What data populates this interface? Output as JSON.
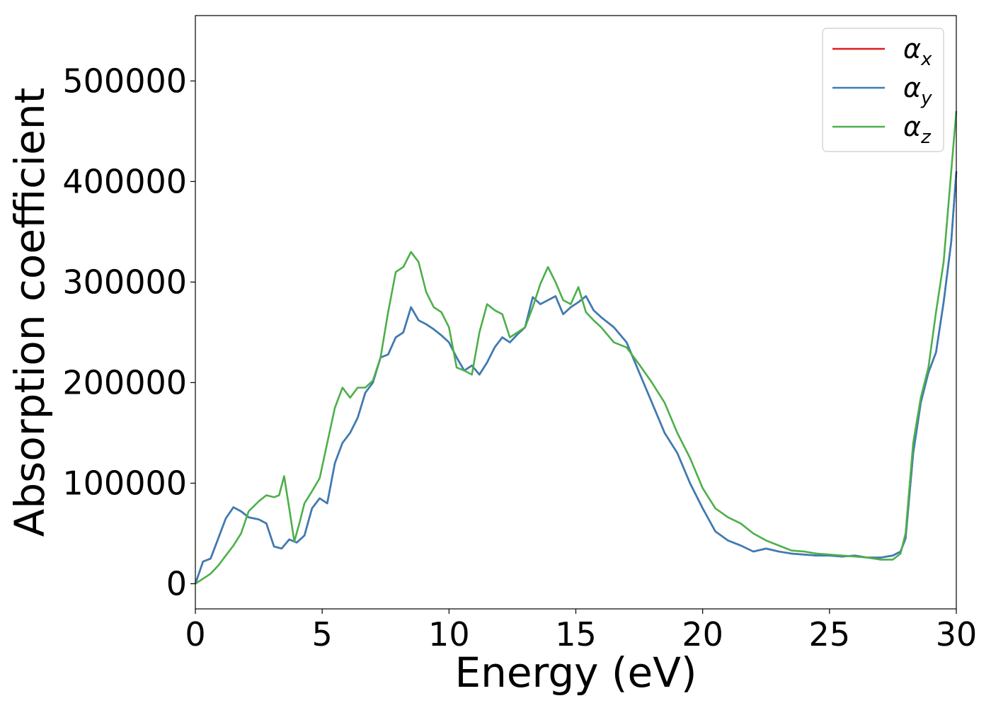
{
  "chart_data": {
    "type": "line",
    "title": "",
    "xlabel": "Energy (eV)",
    "ylabel": "Absorption coefficient",
    "xlim": [
      0,
      30
    ],
    "ylim": [
      -25000,
      565000
    ],
    "xticks": [
      0,
      5,
      10,
      15,
      20,
      25,
      30
    ],
    "xtick_labels": [
      "0",
      "5",
      "10",
      "15",
      "20",
      "25",
      "30"
    ],
    "yticks": [
      0,
      100000,
      200000,
      300000,
      400000,
      500000
    ],
    "ytick_labels": [
      "0",
      "100000",
      "200000",
      "300000",
      "400000",
      "500000"
    ],
    "grid": false,
    "legend_position": "top-right",
    "legend": [
      {
        "symbol": "α",
        "sub": "x",
        "color": "#e41a1c"
      },
      {
        "symbol": "α",
        "sub": "y",
        "color": "#377eb8"
      },
      {
        "symbol": "α",
        "sub": "z",
        "color": "#4daf4a"
      }
    ],
    "series": [
      {
        "color": "#e41a1c",
        "x": [
          0,
          0.3,
          0.6,
          0.9,
          1.2,
          1.5,
          1.8,
          2.1,
          2.5,
          2.8,
          3.1,
          3.4,
          3.7,
          4.0,
          4.3,
          4.6,
          4.9,
          5.2,
          5.5,
          5.8,
          6.1,
          6.4,
          6.7,
          7.0,
          7.3,
          7.6,
          7.9,
          8.2,
          8.5,
          8.8,
          9.1,
          9.4,
          9.7,
          10.0,
          10.3,
          10.6,
          10.9,
          11.2,
          11.5,
          11.8,
          12.1,
          12.4,
          12.7,
          13.0,
          13.3,
          13.6,
          13.9,
          14.2,
          14.5,
          14.8,
          15.1,
          15.4,
          15.7,
          16.0,
          16.5,
          17.0,
          17.5,
          18.0,
          18.5,
          19.0,
          19.5,
          20.0,
          20.5,
          21.0,
          21.5,
          22.0,
          22.5,
          23.0,
          23.5,
          24.0,
          24.5,
          25.0,
          25.5,
          26.0,
          26.5,
          27.0,
          27.5,
          27.8,
          28.0,
          28.3,
          28.6,
          28.9,
          29.2,
          29.5,
          29.8,
          30.0
        ],
        "y": [
          0,
          22000,
          25000,
          45000,
          65000,
          76000,
          72000,
          66000,
          64000,
          60000,
          37000,
          35000,
          44000,
          41000,
          48000,
          75000,
          85000,
          80000,
          120000,
          140000,
          150000,
          165000,
          190000,
          200000,
          225000,
          228000,
          245000,
          250000,
          275000,
          262000,
          258000,
          253000,
          247000,
          240000,
          225000,
          212000,
          217000,
          208000,
          220000,
          235000,
          245000,
          240000,
          248000,
          255000,
          285000,
          278000,
          282000,
          286000,
          268000,
          275000,
          280000,
          286000,
          272000,
          265000,
          255000,
          240000,
          210000,
          180000,
          150000,
          130000,
          100000,
          75000,
          52000,
          43000,
          38000,
          32000,
          35000,
          32000,
          30000,
          29000,
          28000,
          28000,
          27000,
          28000,
          26000,
          26000,
          28000,
          32000,
          45000,
          130000,
          180000,
          210000,
          230000,
          280000,
          340000,
          410000
        ]
      },
      {
        "color": "#377eb8",
        "x": [
          0,
          0.3,
          0.6,
          0.9,
          1.2,
          1.5,
          1.8,
          2.1,
          2.5,
          2.8,
          3.1,
          3.4,
          3.7,
          4.0,
          4.3,
          4.6,
          4.9,
          5.2,
          5.5,
          5.8,
          6.1,
          6.4,
          6.7,
          7.0,
          7.3,
          7.6,
          7.9,
          8.2,
          8.5,
          8.8,
          9.1,
          9.4,
          9.7,
          10.0,
          10.3,
          10.6,
          10.9,
          11.2,
          11.5,
          11.8,
          12.1,
          12.4,
          12.7,
          13.0,
          13.3,
          13.6,
          13.9,
          14.2,
          14.5,
          14.8,
          15.1,
          15.4,
          15.7,
          16.0,
          16.5,
          17.0,
          17.5,
          18.0,
          18.5,
          19.0,
          19.5,
          20.0,
          20.5,
          21.0,
          21.5,
          22.0,
          22.5,
          23.0,
          23.5,
          24.0,
          24.5,
          25.0,
          25.5,
          26.0,
          26.5,
          27.0,
          27.5,
          27.8,
          28.0,
          28.3,
          28.6,
          28.9,
          29.2,
          29.5,
          29.8,
          30.0
        ],
        "y": [
          0,
          22000,
          25000,
          45000,
          65000,
          76000,
          72000,
          66000,
          64000,
          60000,
          37000,
          35000,
          44000,
          41000,
          48000,
          75000,
          85000,
          80000,
          120000,
          140000,
          150000,
          165000,
          190000,
          200000,
          225000,
          228000,
          245000,
          250000,
          275000,
          262000,
          258000,
          253000,
          247000,
          240000,
          225000,
          212000,
          217000,
          208000,
          220000,
          235000,
          245000,
          240000,
          248000,
          255000,
          285000,
          278000,
          282000,
          286000,
          268000,
          275000,
          280000,
          286000,
          272000,
          265000,
          255000,
          240000,
          210000,
          180000,
          150000,
          130000,
          100000,
          75000,
          52000,
          43000,
          38000,
          32000,
          35000,
          32000,
          30000,
          29000,
          28000,
          28000,
          27000,
          28000,
          26000,
          26000,
          28000,
          32000,
          45000,
          130000,
          180000,
          210000,
          230000,
          280000,
          340000,
          410000
        ]
      },
      {
        "color": "#4daf4a",
        "x": [
          0,
          0.3,
          0.6,
          0.9,
          1.2,
          1.5,
          1.8,
          2.1,
          2.5,
          2.8,
          3.1,
          3.3,
          3.5,
          3.7,
          3.9,
          4.1,
          4.3,
          4.6,
          4.9,
          5.2,
          5.5,
          5.8,
          6.1,
          6.4,
          6.7,
          7.0,
          7.3,
          7.6,
          7.9,
          8.2,
          8.5,
          8.8,
          9.1,
          9.4,
          9.7,
          10.0,
          10.3,
          10.6,
          10.9,
          11.2,
          11.5,
          11.8,
          12.1,
          12.4,
          12.7,
          13.0,
          13.3,
          13.6,
          13.9,
          14.2,
          14.5,
          14.8,
          15.1,
          15.4,
          15.7,
          16.0,
          16.5,
          17.0,
          17.5,
          18.0,
          18.5,
          19.0,
          19.5,
          20.0,
          20.5,
          21.0,
          21.5,
          22.0,
          22.5,
          23.0,
          23.5,
          24.0,
          24.5,
          25.0,
          25.5,
          26.0,
          26.5,
          27.0,
          27.5,
          27.8,
          28.0,
          28.3,
          28.6,
          28.9,
          29.2,
          29.5,
          29.8,
          30.0
        ],
        "y": [
          0,
          5000,
          10000,
          18000,
          28000,
          38000,
          50000,
          72000,
          82000,
          88000,
          86000,
          88000,
          107000,
          75000,
          42000,
          60000,
          80000,
          92000,
          105000,
          140000,
          175000,
          195000,
          185000,
          195000,
          195000,
          202000,
          225000,
          270000,
          310000,
          315000,
          330000,
          320000,
          290000,
          275000,
          270000,
          255000,
          215000,
          212000,
          208000,
          250000,
          278000,
          272000,
          268000,
          245000,
          250000,
          255000,
          275000,
          298000,
          315000,
          300000,
          282000,
          278000,
          295000,
          270000,
          262000,
          255000,
          240000,
          235000,
          218000,
          200000,
          180000,
          150000,
          125000,
          95000,
          75000,
          66000,
          60000,
          50000,
          43000,
          38000,
          33000,
          32000,
          30000,
          29000,
          28000,
          27000,
          26000,
          24000,
          24000,
          30000,
          50000,
          140000,
          185000,
          215000,
          270000,
          320000,
          410000,
          470000
        ]
      }
    ]
  }
}
